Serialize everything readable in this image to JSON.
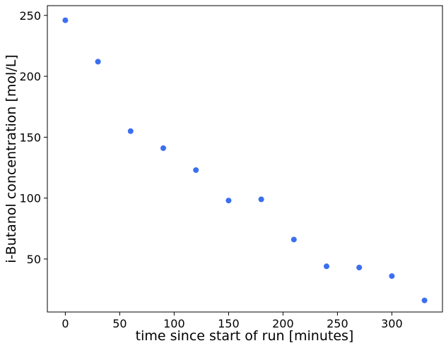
{
  "chart_data": {
    "type": "scatter",
    "xlabel": "time since start of run [minutes]",
    "ylabel": "i-Butanol concentration [mol/L]",
    "xlim": [
      -16.5,
      346.5
    ],
    "ylim": [
      6.5,
      258.0
    ],
    "x_ticks": [
      0,
      50,
      100,
      150,
      200,
      250,
      300
    ],
    "y_ticks": [
      50,
      100,
      150,
      200,
      250
    ],
    "marker_color": "#3a6ff0",
    "grid": false,
    "points": [
      {
        "x": 0,
        "y": 246
      },
      {
        "x": 30,
        "y": 212
      },
      {
        "x": 60,
        "y": 155
      },
      {
        "x": 90,
        "y": 141
      },
      {
        "x": 120,
        "y": 123
      },
      {
        "x": 150,
        "y": 98
      },
      {
        "x": 180,
        "y": 99
      },
      {
        "x": 210,
        "y": 66
      },
      {
        "x": 240,
        "y": 44
      },
      {
        "x": 270,
        "y": 43
      },
      {
        "x": 300,
        "y": 36
      },
      {
        "x": 330,
        "y": 16
      }
    ]
  }
}
